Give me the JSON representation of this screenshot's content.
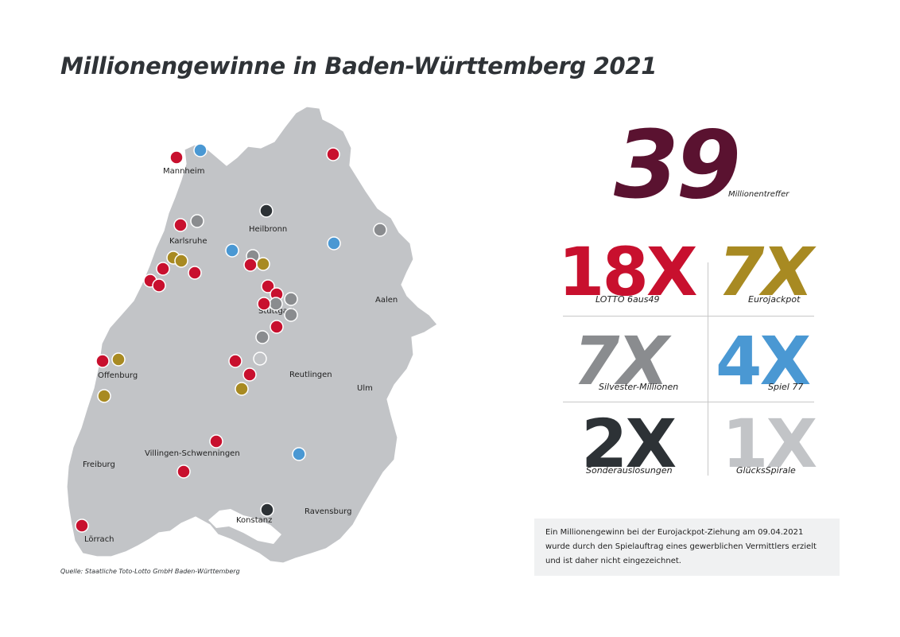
{
  "title": "Millionengewinne in Baden-Württemberg 2021",
  "source": "Quelle: Staatliche Toto-Lotto GmbH Baden-Württemberg",
  "colors": {
    "map_fill": "#c2c4c7",
    "lotto": "#c8102e",
    "eurojackpot": "#a88a22",
    "silvester": "#8a8c8f",
    "spiel77": "#4a98d3",
    "sonder": "#2d3236",
    "gluecksspirale": "#c2c4c7",
    "total": "#5a1230"
  },
  "map": {
    "cities": [
      "Mannheim",
      "Heilbronn",
      "Karlsruhe",
      "Stuttgart",
      "Aalen",
      "Offenburg",
      "Reutlingen",
      "Ulm",
      "Freiburg",
      "Villingen-Schwenningen",
      "Ravensburg",
      "Konstanz",
      "Lörrach"
    ]
  },
  "total": {
    "value": "39",
    "label": "Millionentreffer"
  },
  "games": [
    {
      "count": "18X",
      "label": "LOTTO 6aus49",
      "color_key": "lotto"
    },
    {
      "count": "7X",
      "label": "Eurojackpot",
      "color_key": "eurojackpot"
    },
    {
      "count": "7X",
      "label": "Silvester-Millionen",
      "color_key": "silvester"
    },
    {
      "count": "4X",
      "label": "Spiel 77",
      "color_key": "spiel77"
    },
    {
      "count": "2X",
      "label": "Sonderauslosungen",
      "color_key": "sonder"
    },
    {
      "count": "1X",
      "label": "GlücksSpirale",
      "color_key": "gluecksspirale"
    }
  ],
  "note": {
    "lines": [
      "Ein Millionengewinn bei der Eurojackpot-Ziehung am 09.04.2021",
      "wurde durch den Spielauftrag eines gewerblichen Vermittlers erzielt",
      "und ist daher nicht eingezeichnet."
    ]
  }
}
